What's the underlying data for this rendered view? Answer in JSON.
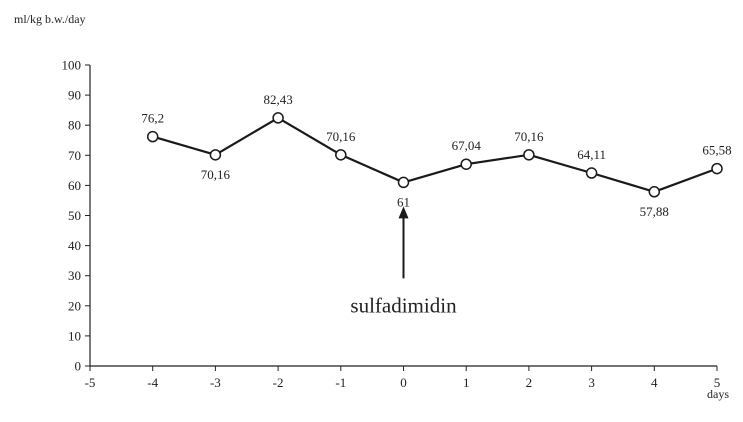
{
  "chart_data": {
    "type": "line",
    "title": "",
    "ylabel": "ml/kg b.w./day",
    "xlabel": "days",
    "xlim": [
      -5,
      5
    ],
    "ylim": [
      0,
      100
    ],
    "x_ticks": [
      "-5",
      "-4",
      "-3",
      "-2",
      "-1",
      "0",
      "1",
      "2",
      "3",
      "4",
      "5"
    ],
    "y_ticks": [
      "0",
      "10",
      "20",
      "30",
      "40",
      "50",
      "60",
      "70",
      "80",
      "90",
      "100"
    ],
    "grid": false,
    "legend": "none",
    "series": [
      {
        "x": [
          -4,
          -3,
          -2,
          -1,
          0,
          1,
          2,
          3,
          4,
          5
        ],
        "values": [
          76.2,
          70.16,
          82.43,
          70.16,
          61,
          67.04,
          70.16,
          64.11,
          57.88,
          65.58
        ],
        "labels": [
          "76,2",
          "70,16",
          "82,43",
          "70,16",
          "61",
          "67,04",
          "70,16",
          "64,11",
          "57,88",
          "65,58"
        ]
      }
    ],
    "annotations": [
      {
        "text": "sulfadimidin",
        "x": 0
      }
    ],
    "colors": {
      "line": "#1a1a1a",
      "marker_fill": "#ffffff",
      "axis": "#222222",
      "text": "#222222"
    }
  }
}
